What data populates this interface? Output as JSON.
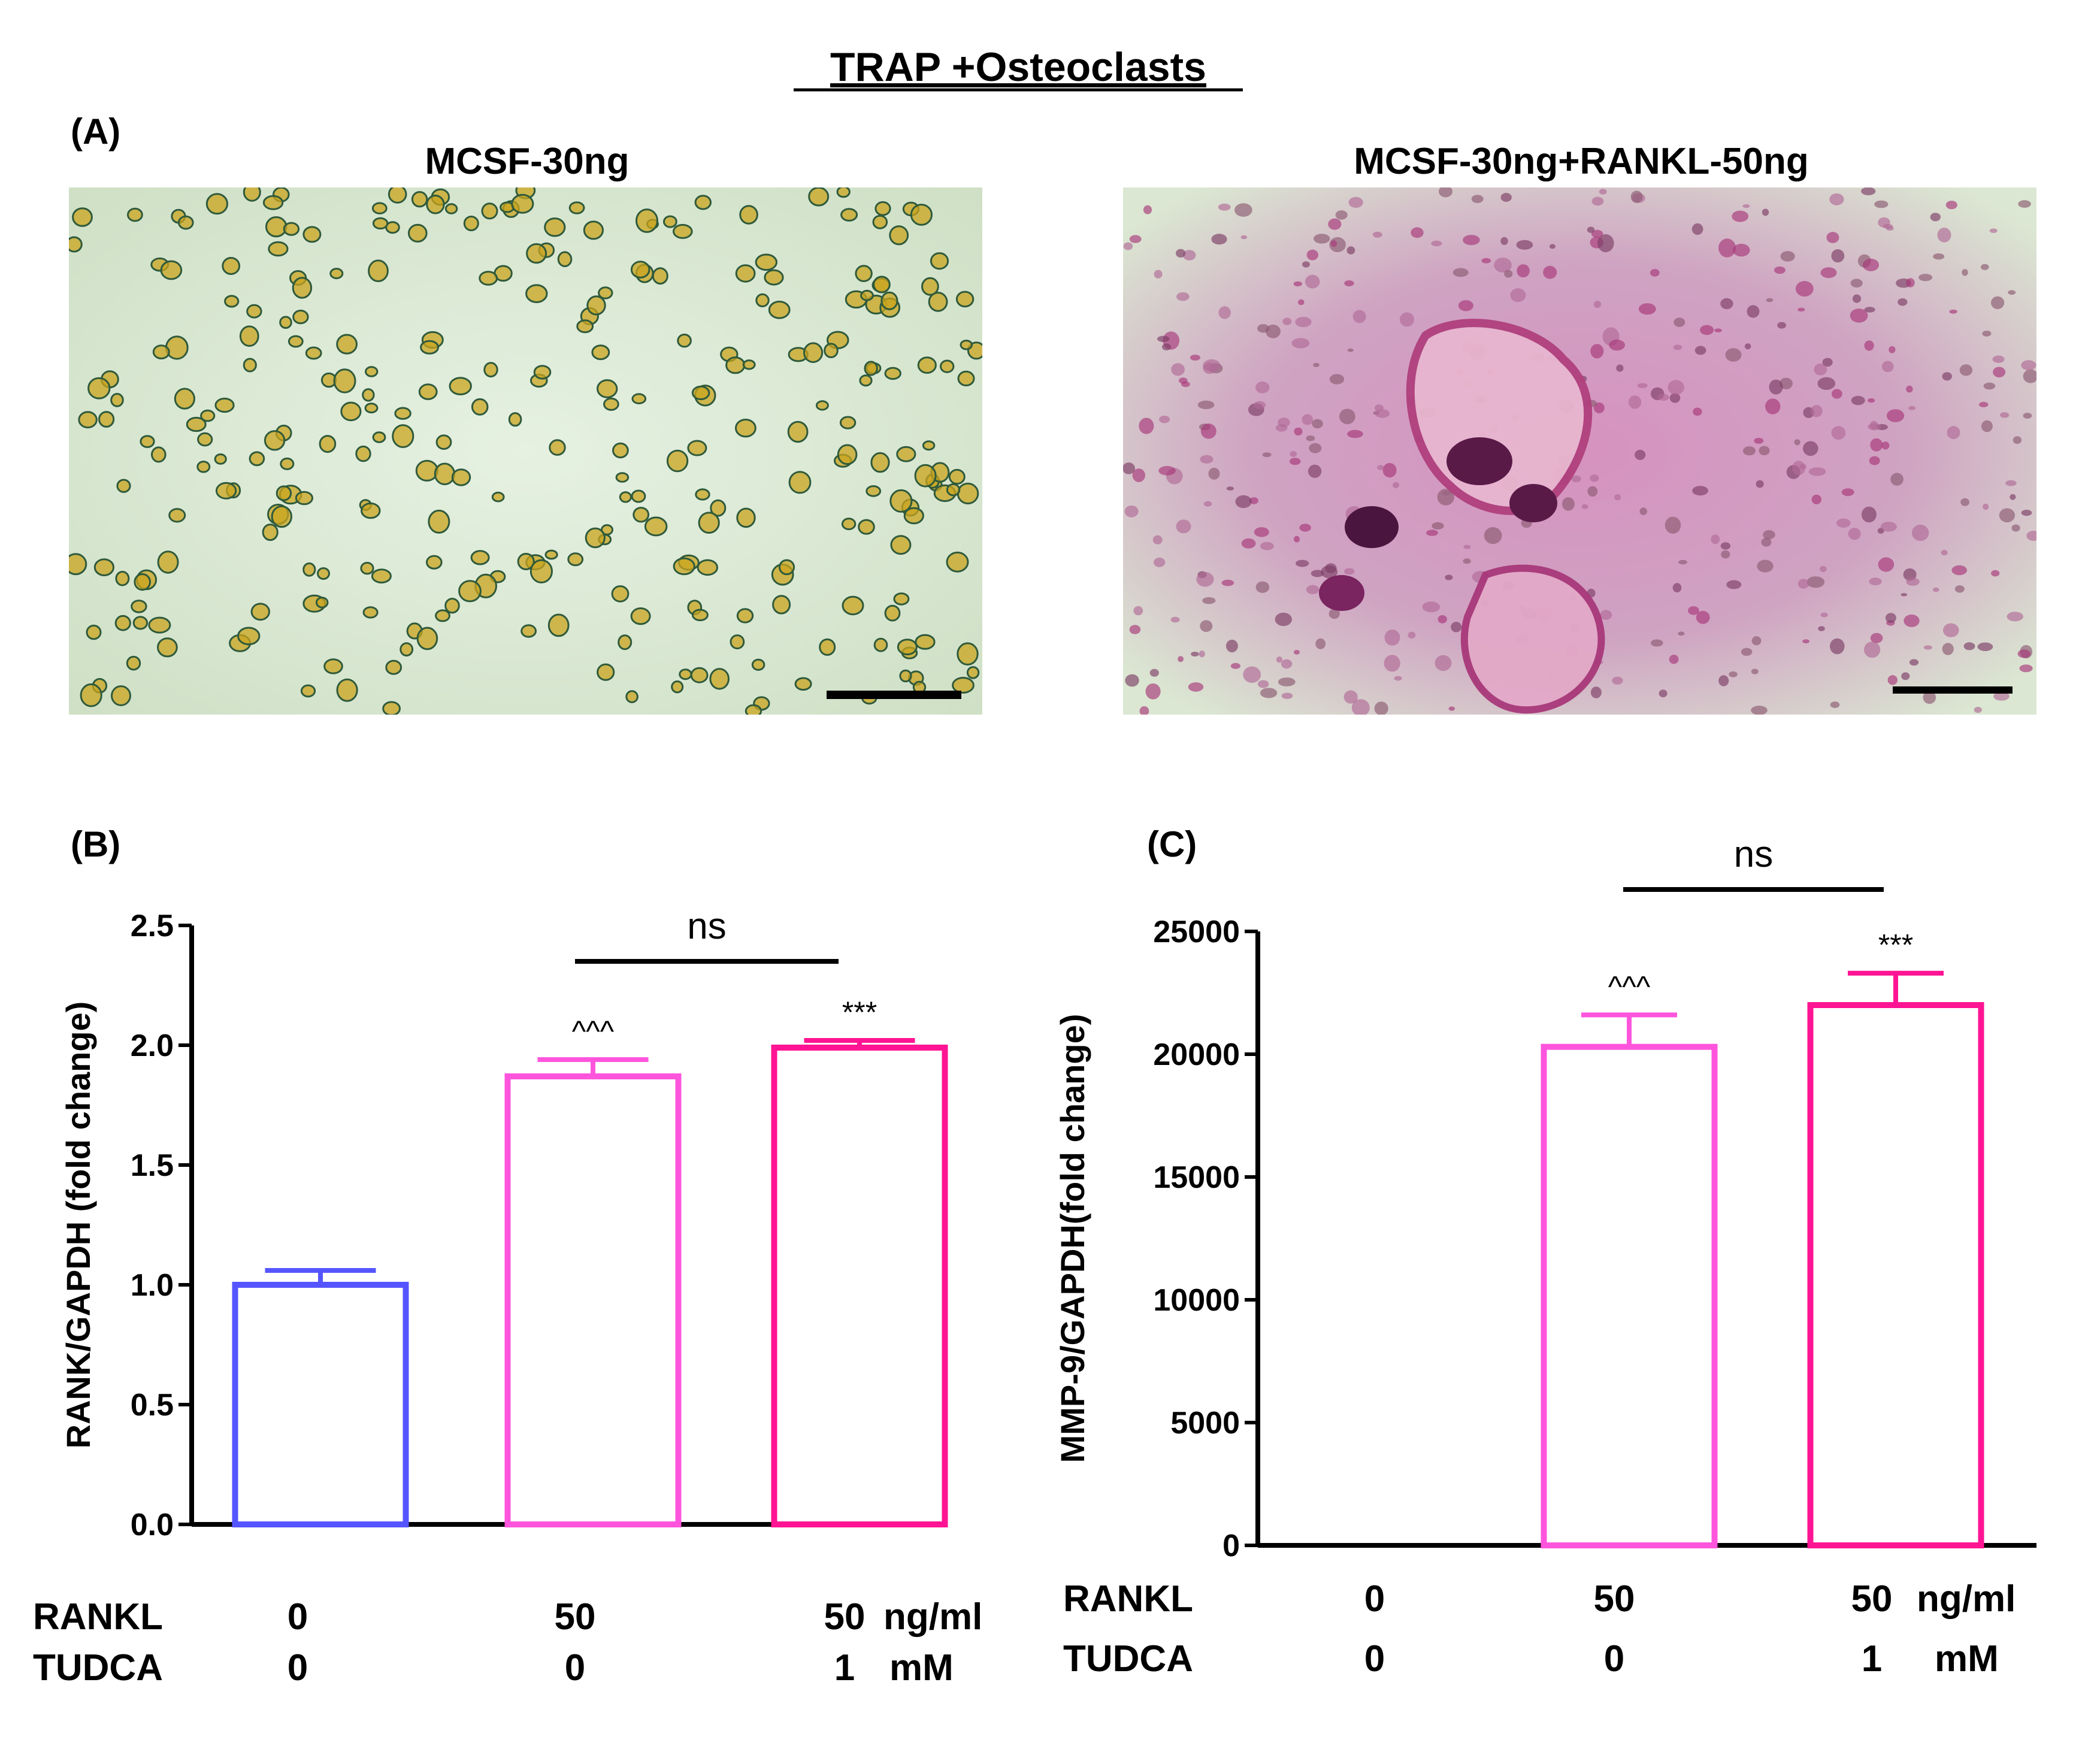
{
  "figure": {
    "title": "TRAP +Osteoclasts",
    "panel_a_label": "(A)",
    "panel_b_label": "(B)",
    "panel_c_label": "(C)"
  },
  "micrographs": [
    {
      "label": "MCSF-30ng",
      "stain_color": "#c9a41d",
      "background_color": "#dcebd6",
      "has_scale_bar": true
    },
    {
      "label": "MCSF-30ng+RANKL-50ng",
      "stain_color": "#a8387a",
      "background_color": "#dde9d4",
      "has_scale_bar": true
    }
  ],
  "chart_data": [
    {
      "type": "bar",
      "panel": "(B)",
      "ylabel": "RANK/GAPDH (fold change)",
      "ylim": [
        0,
        2.5
      ],
      "yticks": [
        "0.0",
        "0.5",
        "1.0",
        "1.5",
        "2.0",
        "2.5"
      ],
      "ytick_values": [
        0,
        0.5,
        1.0,
        1.5,
        2.0,
        2.5
      ],
      "categories": [
        "0 / 0",
        "50 / 0",
        "50 / 1"
      ],
      "values": [
        1.0,
        1.87,
        1.99
      ],
      "errors": [
        0.06,
        0.07,
        0.03
      ],
      "colors": [
        "#5555ff",
        "#ff55dd",
        "#ff1493"
      ],
      "annotations": [
        "",
        "^^^",
        "***"
      ],
      "bracket": {
        "from": 1,
        "to": 2,
        "label": "ns"
      },
      "x_rows": [
        {
          "label": "RANKL",
          "values": [
            "0",
            "50",
            "50"
          ],
          "unit": "ng/ml"
        },
        {
          "label": "TUDCA",
          "values": [
            "0",
            "0",
            "1"
          ],
          "unit": "mM"
        }
      ]
    },
    {
      "type": "bar",
      "panel": "(C)",
      "ylabel": "MMP-9/GAPDH(fold change)",
      "ylim": [
        0,
        25000
      ],
      "yticks": [
        "0",
        "5000",
        "10000",
        "15000",
        "20000",
        "25000"
      ],
      "ytick_values": [
        0,
        5000,
        10000,
        15000,
        20000,
        25000
      ],
      "categories": [
        "0 / 0",
        "50 / 0",
        "50 / 1"
      ],
      "values": [
        0,
        20300,
        22000
      ],
      "errors": [
        0,
        1300,
        1300
      ],
      "colors": [
        "#5555ff",
        "#ff55dd",
        "#ff1493"
      ],
      "annotations": [
        "",
        "^^^",
        "***"
      ],
      "bracket": {
        "from": 1,
        "to": 2,
        "label": "ns"
      },
      "x_rows": [
        {
          "label": "RANKL",
          "values": [
            "0",
            "50",
            "50"
          ],
          "unit": "ng/ml"
        },
        {
          "label": "TUDCA",
          "values": [
            "0",
            "0",
            "1"
          ],
          "unit": "mM"
        }
      ]
    }
  ]
}
